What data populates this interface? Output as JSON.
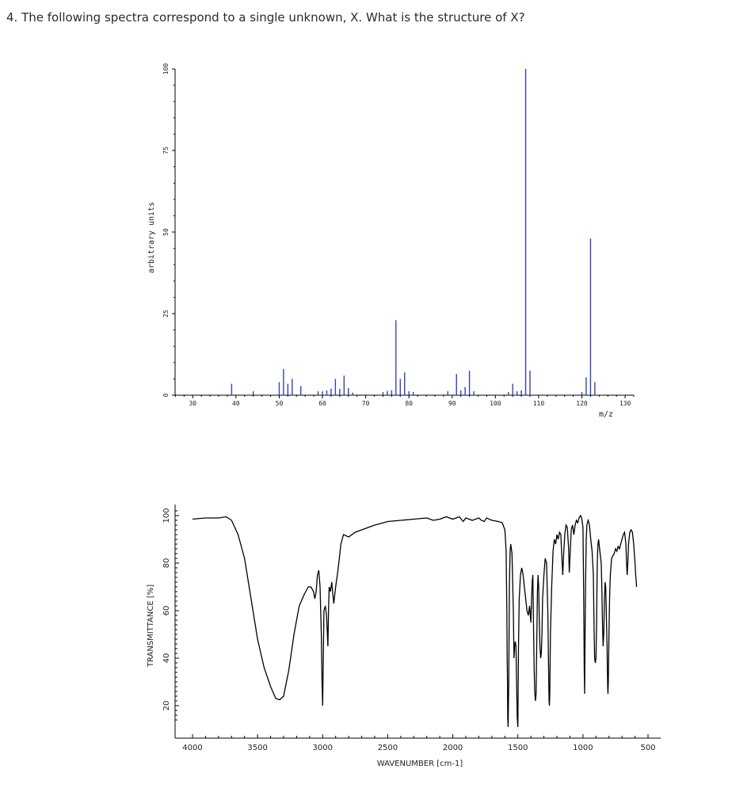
{
  "question": {
    "text": "4. The following spectra correspond to a single unknown, X. What is the structure of X?"
  },
  "chart_data": [
    {
      "type": "bar",
      "xlabel": "m/z",
      "ylabel": "arbitrary units",
      "xlim": [
        25,
        132
      ],
      "ylim": [
        0,
        100
      ],
      "x_ticks": [
        30,
        40,
        50,
        60,
        70,
        80,
        90,
        100,
        110,
        120,
        130
      ],
      "y_ticks": [
        0,
        25,
        50,
        75,
        100
      ],
      "color": "#3344bb",
      "peaks": [
        {
          "x": 39,
          "y": 3.5
        },
        {
          "x": 44,
          "y": 1.2
        },
        {
          "x": 50,
          "y": 4
        },
        {
          "x": 51,
          "y": 8
        },
        {
          "x": 52,
          "y": 3.5
        },
        {
          "x": 53,
          "y": 5
        },
        {
          "x": 55,
          "y": 2.8
        },
        {
          "x": 59,
          "y": 1.2
        },
        {
          "x": 60,
          "y": 1.2
        },
        {
          "x": 61,
          "y": 1.5
        },
        {
          "x": 62,
          "y": 2
        },
        {
          "x": 63,
          "y": 5
        },
        {
          "x": 64,
          "y": 2
        },
        {
          "x": 65,
          "y": 6
        },
        {
          "x": 66,
          "y": 2.2
        },
        {
          "x": 67,
          "y": 0.8
        },
        {
          "x": 74,
          "y": 1
        },
        {
          "x": 75,
          "y": 1.3
        },
        {
          "x": 76,
          "y": 1.5
        },
        {
          "x": 77,
          "y": 23
        },
        {
          "x": 78,
          "y": 5
        },
        {
          "x": 79,
          "y": 7
        },
        {
          "x": 80,
          "y": 1.2
        },
        {
          "x": 81,
          "y": 1
        },
        {
          "x": 89,
          "y": 1.2
        },
        {
          "x": 91,
          "y": 6.5
        },
        {
          "x": 92,
          "y": 1.5
        },
        {
          "x": 93,
          "y": 2.5
        },
        {
          "x": 94,
          "y": 7.5
        },
        {
          "x": 95,
          "y": 1.2
        },
        {
          "x": 103,
          "y": 1
        },
        {
          "x": 104,
          "y": 3.5
        },
        {
          "x": 105,
          "y": 1.2
        },
        {
          "x": 106,
          "y": 1.5
        },
        {
          "x": 107,
          "y": 100
        },
        {
          "x": 108,
          "y": 7.5
        },
        {
          "x": 120,
          "y": 1
        },
        {
          "x": 121,
          "y": 5.5
        },
        {
          "x": 122,
          "y": 48
        },
        {
          "x": 123,
          "y": 4
        }
      ]
    },
    {
      "type": "line",
      "xlabel": "WAVENUMBER [cm-1]",
      "ylabel": "TRANSMITTANCE [%]",
      "xlim": [
        4050,
        450
      ],
      "ylim": [
        12,
        102
      ],
      "x_ticks": [
        4000,
        3500,
        3000,
        2500,
        2000,
        1500,
        1000,
        500
      ],
      "y_ticks": [
        20,
        40,
        60,
        80,
        100
      ],
      "color": "#000000",
      "points": [
        [
          4000,
          98.5
        ],
        [
          3900,
          99
        ],
        [
          3800,
          99
        ],
        [
          3740,
          99.5
        ],
        [
          3700,
          98
        ],
        [
          3650,
          92
        ],
        [
          3600,
          82
        ],
        [
          3550,
          65
        ],
        [
          3500,
          48
        ],
        [
          3450,
          36
        ],
        [
          3400,
          28
        ],
        [
          3360,
          23
        ],
        [
          3330,
          22.5
        ],
        [
          3300,
          24
        ],
        [
          3260,
          35
        ],
        [
          3220,
          50
        ],
        [
          3180,
          62
        ],
        [
          3140,
          67
        ],
        [
          3110,
          70
        ],
        [
          3090,
          70
        ],
        [
          3070,
          68
        ],
        [
          3060,
          65
        ],
        [
          3050,
          68
        ],
        [
          3040,
          75
        ],
        [
          3030,
          77
        ],
        [
          3020,
          70
        ],
        [
          3010,
          50
        ],
        [
          3005,
          30
        ],
        [
          3000,
          20
        ],
        [
          2995,
          40
        ],
        [
          2990,
          60
        ],
        [
          2980,
          62
        ],
        [
          2970,
          58
        ],
        [
          2960,
          45
        ],
        [
          2955,
          60
        ],
        [
          2950,
          70
        ],
        [
          2940,
          68
        ],
        [
          2930,
          72
        ],
        [
          2920,
          66
        ],
        [
          2915,
          63
        ],
        [
          2900,
          70
        ],
        [
          2880,
          78
        ],
        [
          2860,
          88
        ],
        [
          2840,
          92
        ],
        [
          2800,
          91
        ],
        [
          2750,
          93
        ],
        [
          2700,
          94
        ],
        [
          2650,
          95
        ],
        [
          2600,
          96
        ],
        [
          2500,
          97.5
        ],
        [
          2400,
          98
        ],
        [
          2300,
          98.5
        ],
        [
          2200,
          99
        ],
        [
          2150,
          98
        ],
        [
          2100,
          98.5
        ],
        [
          2050,
          99.5
        ],
        [
          2000,
          98.5
        ],
        [
          1950,
          99.5
        ],
        [
          1920,
          97.5
        ],
        [
          1900,
          99
        ],
        [
          1850,
          98
        ],
        [
          1800,
          99
        ],
        [
          1780,
          98
        ],
        [
          1760,
          97.5
        ],
        [
          1740,
          99
        ],
        [
          1700,
          98
        ],
        [
          1650,
          97.5
        ],
        [
          1620,
          97
        ],
        [
          1600,
          94
        ],
        [
          1590,
          85
        ],
        [
          1585,
          60
        ],
        [
          1582,
          40
        ],
        [
          1580,
          30
        ],
        [
          1578,
          15
        ],
        [
          1575,
          11
        ],
        [
          1570,
          30
        ],
        [
          1565,
          70
        ],
        [
          1560,
          85
        ],
        [
          1555,
          88
        ],
        [
          1545,
          84
        ],
        [
          1535,
          60
        ],
        [
          1530,
          40
        ],
        [
          1525,
          45
        ],
        [
          1520,
          47
        ],
        [
          1515,
          45
        ],
        [
          1510,
          30
        ],
        [
          1505,
          15
        ],
        [
          1500,
          11
        ],
        [
          1495,
          45
        ],
        [
          1490,
          65
        ],
        [
          1480,
          75
        ],
        [
          1470,
          78
        ],
        [
          1460,
          75
        ],
        [
          1450,
          70
        ],
        [
          1440,
          65
        ],
        [
          1430,
          60
        ],
        [
          1420,
          58
        ],
        [
          1410,
          62
        ],
        [
          1400,
          55
        ],
        [
          1395,
          65
        ],
        [
          1390,
          72
        ],
        [
          1385,
          75
        ],
        [
          1380,
          55
        ],
        [
          1375,
          35
        ],
        [
          1370,
          25
        ],
        [
          1365,
          22
        ],
        [
          1360,
          25
        ],
        [
          1355,
          45
        ],
        [
          1350,
          68
        ],
        [
          1345,
          75
        ],
        [
          1340,
          70
        ],
        [
          1335,
          55
        ],
        [
          1330,
          45
        ],
        [
          1325,
          40
        ],
        [
          1320,
          42
        ],
        [
          1315,
          50
        ],
        [
          1310,
          65
        ],
        [
          1300,
          75
        ],
        [
          1290,
          82
        ],
        [
          1280,
          80
        ],
        [
          1270,
          60
        ],
        [
          1265,
          40
        ],
        [
          1262,
          28
        ],
        [
          1260,
          22
        ],
        [
          1258,
          20
        ],
        [
          1255,
          25
        ],
        [
          1250,
          50
        ],
        [
          1240,
          70
        ],
        [
          1230,
          85
        ],
        [
          1220,
          90
        ],
        [
          1210,
          88
        ],
        [
          1200,
          92
        ],
        [
          1190,
          90
        ],
        [
          1180,
          93
        ],
        [
          1170,
          92
        ],
        [
          1160,
          80
        ],
        [
          1155,
          75
        ],
        [
          1150,
          82
        ],
        [
          1140,
          92
        ],
        [
          1130,
          96
        ],
        [
          1120,
          95
        ],
        [
          1110,
          86
        ],
        [
          1105,
          76
        ],
        [
          1100,
          82
        ],
        [
          1090,
          94
        ],
        [
          1080,
          96
        ],
        [
          1070,
          92
        ],
        [
          1060,
          96
        ],
        [
          1050,
          98
        ],
        [
          1040,
          97
        ],
        [
          1030,
          99
        ],
        [
          1020,
          100
        ],
        [
          1010,
          99
        ],
        [
          1000,
          95
        ],
        [
          995,
          70
        ],
        [
          990,
          35
        ],
        [
          987,
          25
        ],
        [
          985,
          40
        ],
        [
          980,
          70
        ],
        [
          975,
          90
        ],
        [
          970,
          96
        ],
        [
          960,
          98
        ],
        [
          950,
          96
        ],
        [
          940,
          90
        ],
        [
          930,
          85
        ],
        [
          920,
          75
        ],
        [
          915,
          55
        ],
        [
          910,
          40
        ],
        [
          905,
          38
        ],
        [
          900,
          40
        ],
        [
          895,
          55
        ],
        [
          890,
          80
        ],
        [
          885,
          88
        ],
        [
          880,
          90
        ],
        [
          870,
          85
        ],
        [
          860,
          80
        ],
        [
          855,
          70
        ],
        [
          850,
          55
        ],
        [
          845,
          45
        ],
        [
          840,
          50
        ],
        [
          835,
          65
        ],
        [
          830,
          72
        ],
        [
          825,
          70
        ],
        [
          820,
          58
        ],
        [
          815,
          45
        ],
        [
          812,
          35
        ],
        [
          810,
          28
        ],
        [
          808,
          25
        ],
        [
          805,
          30
        ],
        [
          800,
          50
        ],
        [
          795,
          65
        ],
        [
          790,
          75
        ],
        [
          780,
          82
        ],
        [
          770,
          83
        ],
        [
          760,
          84
        ],
        [
          750,
          86
        ],
        [
          740,
          85
        ],
        [
          730,
          87
        ],
        [
          720,
          86
        ],
        [
          700,
          90
        ],
        [
          690,
          92
        ],
        [
          680,
          93
        ],
        [
          670,
          88
        ],
        [
          665,
          80
        ],
        [
          660,
          75
        ],
        [
          655,
          80
        ],
        [
          650,
          88
        ],
        [
          640,
          93
        ],
        [
          630,
          94
        ],
        [
          620,
          93
        ],
        [
          610,
          88
        ],
        [
          600,
          80
        ],
        [
          595,
          75
        ],
        [
          590,
          72
        ],
        [
          588,
          70
        ]
      ]
    }
  ]
}
